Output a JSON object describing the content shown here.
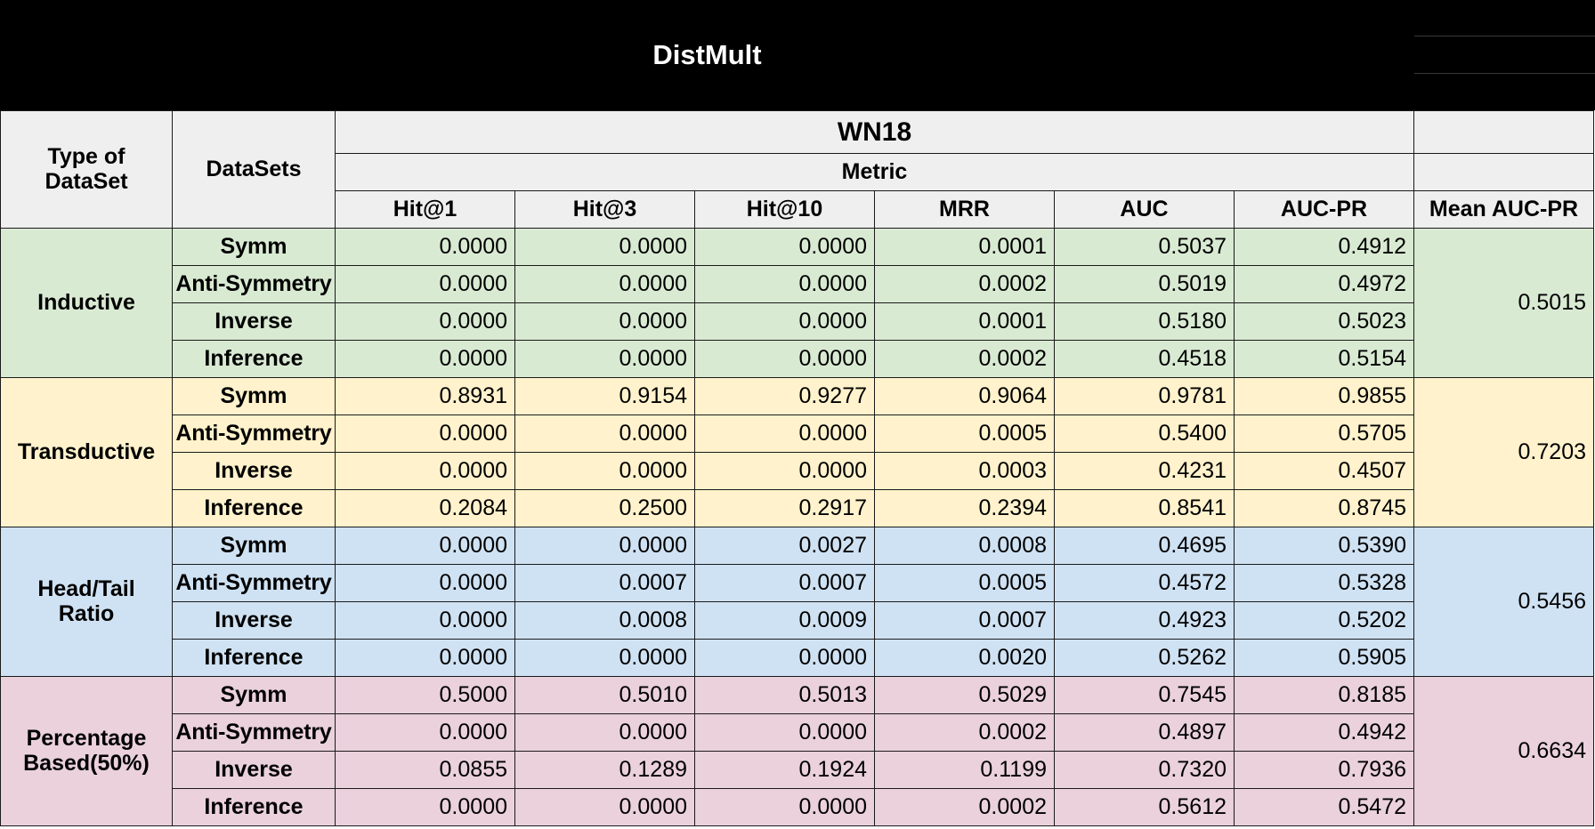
{
  "title": "DistMult",
  "header": {
    "type_label": "Type of DataSet",
    "datasets_label": "DataSets",
    "dataset_name": "WN18",
    "metric_label": "Metric",
    "columns": [
      "Hit@1",
      "Hit@3",
      "Hit@10",
      "MRR",
      "AUC",
      "AUC-PR"
    ],
    "mean_label": "Mean AUC-PR"
  },
  "groups": [
    {
      "name": "Inductive",
      "color": "#d9ead3",
      "mean": "0.5015",
      "rows": [
        {
          "dataset": "Symm",
          "values": [
            "0.0000",
            "0.0000",
            "0.0000",
            "0.0001",
            "0.5037",
            "0.4912"
          ]
        },
        {
          "dataset": "Anti-Symmetry",
          "values": [
            "0.0000",
            "0.0000",
            "0.0000",
            "0.0002",
            "0.5019",
            "0.4972"
          ]
        },
        {
          "dataset": "Inverse",
          "values": [
            "0.0000",
            "0.0000",
            "0.0000",
            "0.0001",
            "0.5180",
            "0.5023"
          ]
        },
        {
          "dataset": "Inference",
          "values": [
            "0.0000",
            "0.0000",
            "0.0000",
            "0.0002",
            "0.4518",
            "0.5154"
          ]
        }
      ]
    },
    {
      "name": "Transductive",
      "color": "#fff2cc",
      "mean": "0.7203",
      "rows": [
        {
          "dataset": "Symm",
          "values": [
            "0.8931",
            "0.9154",
            "0.9277",
            "0.9064",
            "0.9781",
            "0.9855"
          ]
        },
        {
          "dataset": "Anti-Symmetry",
          "values": [
            "0.0000",
            "0.0000",
            "0.0000",
            "0.0005",
            "0.5400",
            "0.5705"
          ]
        },
        {
          "dataset": "Inverse",
          "values": [
            "0.0000",
            "0.0000",
            "0.0000",
            "0.0003",
            "0.4231",
            "0.4507"
          ]
        },
        {
          "dataset": "Inference",
          "values": [
            "0.2084",
            "0.2500",
            "0.2917",
            "0.2394",
            "0.8541",
            "0.8745"
          ]
        }
      ]
    },
    {
      "name": "Head/Tail Ratio",
      "color": "#cfe2f3",
      "mean": "0.5456",
      "rows": [
        {
          "dataset": "Symm",
          "values": [
            "0.0000",
            "0.0000",
            "0.0027",
            "0.0008",
            "0.4695",
            "0.5390"
          ]
        },
        {
          "dataset": "Anti-Symmetry",
          "values": [
            "0.0000",
            "0.0007",
            "0.0007",
            "0.0005",
            "0.4572",
            "0.5328"
          ]
        },
        {
          "dataset": "Inverse",
          "values": [
            "0.0000",
            "0.0008",
            "0.0009",
            "0.0007",
            "0.4923",
            "0.5202"
          ]
        },
        {
          "dataset": "Inference",
          "values": [
            "0.0000",
            "0.0000",
            "0.0000",
            "0.0020",
            "0.5262",
            "0.5905"
          ]
        }
      ]
    },
    {
      "name": "Percentage Based(50%)",
      "color": "#ead1dc",
      "mean": "0.6634",
      "rows": [
        {
          "dataset": "Symm",
          "values": [
            "0.5000",
            "0.5010",
            "0.5013",
            "0.5029",
            "0.7545",
            "0.8185"
          ]
        },
        {
          "dataset": "Anti-Symmetry",
          "values": [
            "0.0000",
            "0.0000",
            "0.0000",
            "0.0002",
            "0.4897",
            "0.4942"
          ]
        },
        {
          "dataset": "Inverse",
          "values": [
            "0.0855",
            "0.1289",
            "0.1924",
            "0.1199",
            "0.7320",
            "0.7936"
          ]
        },
        {
          "dataset": "Inference",
          "values": [
            "0.0000",
            "0.0000",
            "0.0000",
            "0.0002",
            "0.5612",
            "0.5472"
          ]
        }
      ]
    }
  ]
}
